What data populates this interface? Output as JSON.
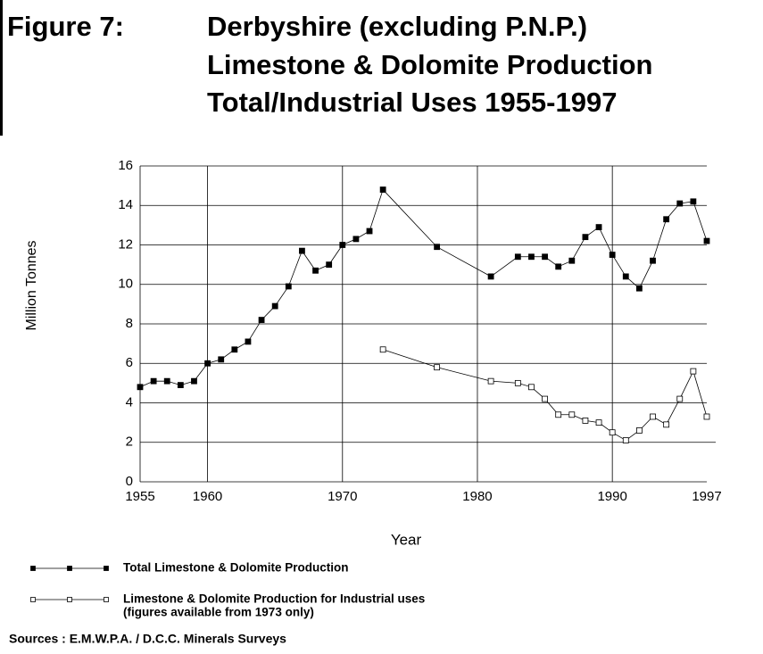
{
  "chart_data": {
    "type": "line",
    "figure_label": "Figure 7:",
    "title_lines": [
      "Derbyshire (excluding P.N.P.)",
      "Limestone & Dolomite Production",
      "Total/Industrial Uses 1955-1997"
    ],
    "xlabel": "Year",
    "ylabel": "Million Tonnes",
    "xlim": [
      1955,
      1997
    ],
    "ylim": [
      0,
      16
    ],
    "xticks": [
      1955,
      1960,
      1970,
      1980,
      1990,
      1997
    ],
    "yticks": [
      0,
      2,
      4,
      6,
      8,
      10,
      12,
      14,
      16
    ],
    "grid": true,
    "series": [
      {
        "name": "Total Limestone & Dolomite Production",
        "color": "#000000",
        "marker": "filled-square",
        "x": [
          1955,
          1956,
          1957,
          1958,
          1959,
          1960,
          1961,
          1962,
          1963,
          1964,
          1965,
          1966,
          1967,
          1968,
          1969,
          1970,
          1971,
          1972,
          1973,
          1977,
          1981,
          1983,
          1984,
          1985,
          1986,
          1987,
          1988,
          1989,
          1990,
          1991,
          1992,
          1993,
          1994,
          1995,
          1996,
          1997
        ],
        "values": [
          4.8,
          5.1,
          5.1,
          4.9,
          5.1,
          6.0,
          6.2,
          6.7,
          7.1,
          8.2,
          8.9,
          9.9,
          11.7,
          10.7,
          11.0,
          12.0,
          12.3,
          12.7,
          14.8,
          11.9,
          10.4,
          11.4,
          11.4,
          11.4,
          10.9,
          11.2,
          12.4,
          12.9,
          11.5,
          10.4,
          9.8,
          11.2,
          13.3,
          14.1,
          14.2,
          12.2
        ]
      },
      {
        "name": "Limestone & Dolomite Production for Industrial uses",
        "note": "(figures available from 1973 only)",
        "color": "#000000",
        "marker": "open-square",
        "x": [
          1973,
          1977,
          1981,
          1983,
          1984,
          1985,
          1986,
          1987,
          1988,
          1989,
          1990,
          1991,
          1992,
          1993,
          1994,
          1995,
          1996,
          1997
        ],
        "values": [
          6.7,
          5.8,
          5.1,
          5.0,
          4.8,
          4.2,
          3.4,
          3.4,
          3.1,
          3.0,
          2.5,
          2.1,
          2.6,
          3.3,
          2.9,
          4.2,
          5.6,
          3.3
        ]
      }
    ],
    "sources": "Sources : E.M.W.P.A. / D.C.C. Minerals Surveys"
  }
}
